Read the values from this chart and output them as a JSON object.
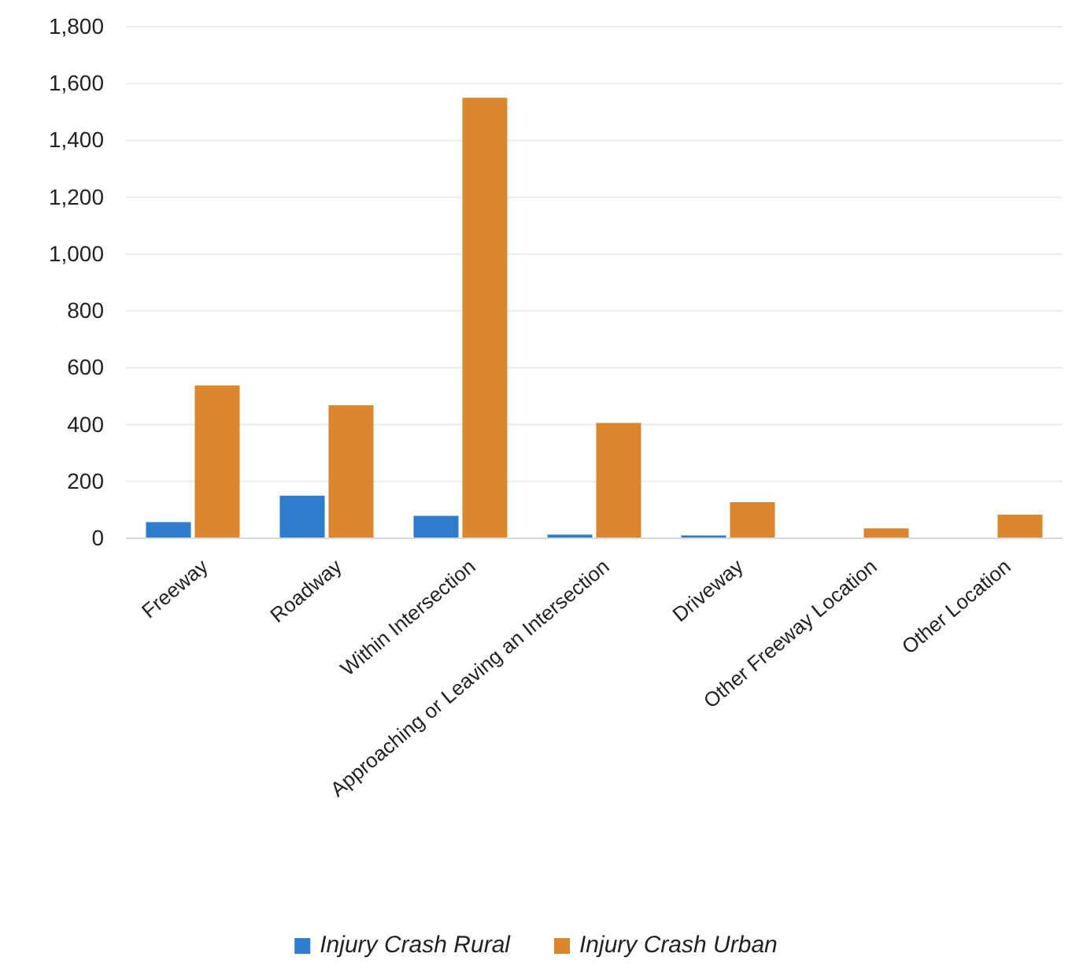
{
  "chart_data": {
    "type": "bar",
    "categories": [
      "Freeway",
      "Roadway",
      "Within Intersection",
      "Approaching or Leaving an Intersection",
      "Driveway",
      "Other Freeway Location",
      "Other Location"
    ],
    "series": [
      {
        "name": "Injury Crash Rural",
        "color": "#2e7dcc",
        "values": [
          57,
          150,
          79,
          13,
          10,
          0,
          0
        ]
      },
      {
        "name": "Injury Crash Urban",
        "color": "#d9862c",
        "values": [
          538,
          468,
          1550,
          406,
          127,
          35,
          83
        ]
      }
    ],
    "ylim": [
      0,
      1800
    ],
    "yticks": [
      0,
      {
        "value": 200,
        "label": "200"
      },
      {
        "value": 400,
        "label": "400"
      },
      {
        "value": 600,
        "label": "600"
      },
      {
        "value": 800,
        "label": "800"
      },
      {
        "value": 1000,
        "label": "1,000"
      },
      {
        "value": 1200,
        "label": "1,200"
      },
      {
        "value": 1400,
        "label": "1,400"
      },
      {
        "value": 1600,
        "label": "1,600"
      },
      {
        "value": 1800,
        "label": "1,800"
      }
    ],
    "grid": "y",
    "legend": "bottom"
  }
}
